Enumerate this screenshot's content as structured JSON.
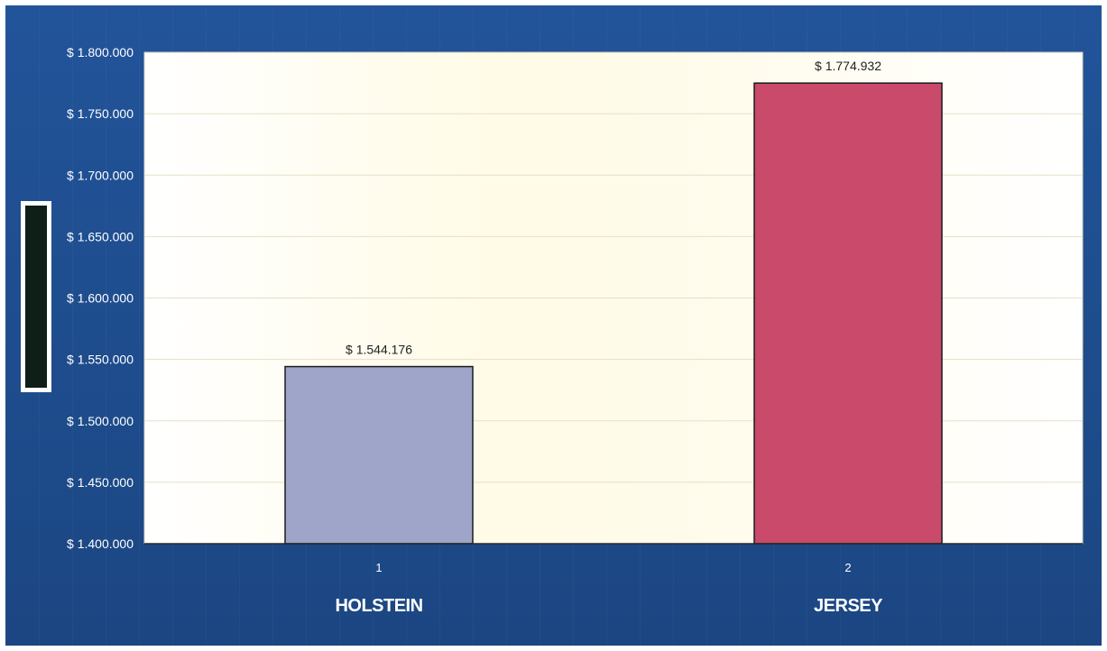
{
  "chart_data": {
    "type": "bar",
    "categories": [
      "HOLSTEIN",
      "JERSEY"
    ],
    "category_numbers": [
      "1",
      "2"
    ],
    "values": [
      1544176,
      1774932
    ],
    "data_labels": [
      "$ 1.544.176",
      "$ 1.774.932"
    ],
    "ylim": [
      1400000,
      1800000
    ],
    "yticks": [
      1400000,
      1450000,
      1500000,
      1550000,
      1600000,
      1650000,
      1700000,
      1750000,
      1800000
    ],
    "ytick_labels": [
      "$ 1.400.000",
      "$ 1.450.000",
      "$ 1.500.000",
      "$ 1.550.000",
      "$ 1.600.000",
      "$ 1.650.000",
      "$ 1.700.000",
      "$ 1.750.000",
      "$ 1.800.000"
    ],
    "grid": true,
    "bar_colors": [
      "#9ea5c9",
      "#c94a6b"
    ],
    "frame_color": "#1f4e8d",
    "plot_background": "#fffdf0"
  }
}
